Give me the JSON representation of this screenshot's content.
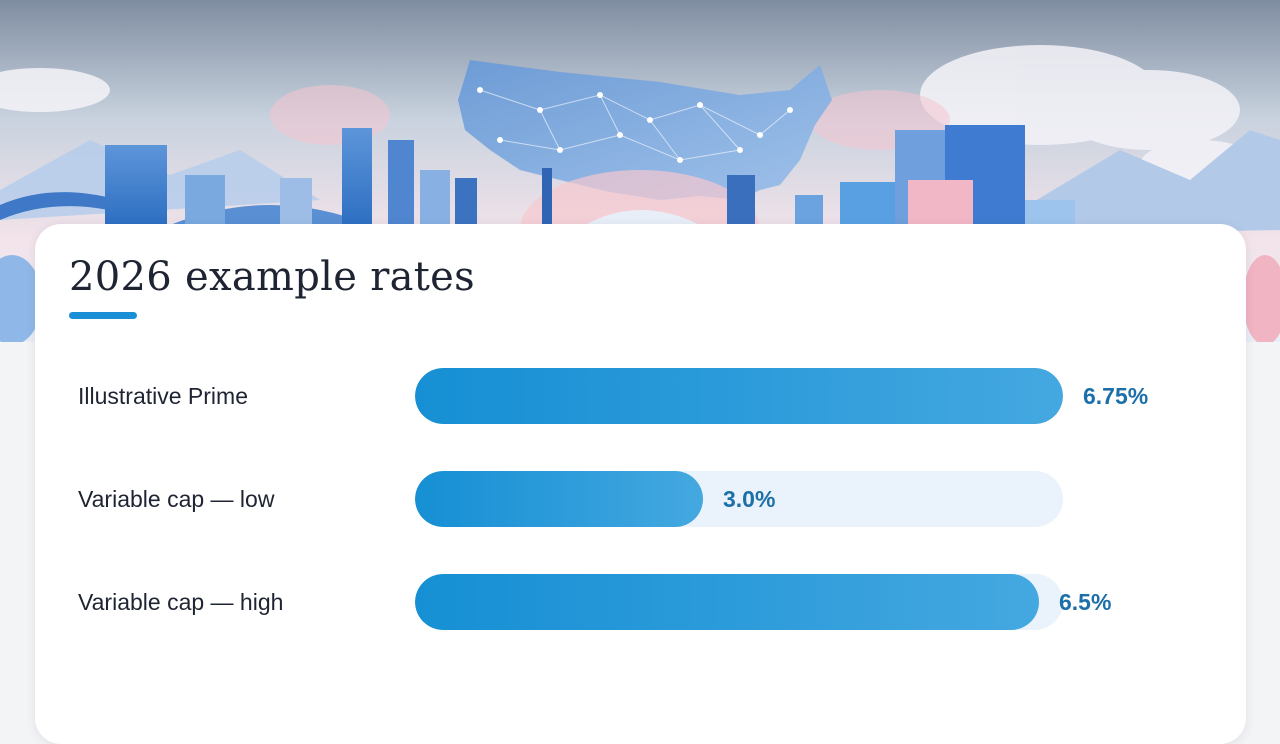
{
  "card": {
    "title": "2026 example rates"
  },
  "colors": {
    "accent": "#1a8fd6",
    "bar_fill_start": "#168fd4",
    "bar_fill_end": "#45a8e0",
    "track": "#eaf3fb",
    "value_text": "#1c6fa8",
    "title_text": "#1f2433"
  },
  "chart_data": {
    "type": "bar",
    "orientation": "horizontal",
    "title": "2026 example rates",
    "categories": [
      "Illustrative Prime",
      "Variable cap — low",
      "Variable cap — high"
    ],
    "values": [
      6.75,
      3.0,
      6.5
    ],
    "value_labels": [
      "6.75%",
      "3.0%",
      "6.5%"
    ],
    "unit": "%",
    "xlim": [
      0,
      6.75
    ],
    "grid": false,
    "legend": "none"
  }
}
